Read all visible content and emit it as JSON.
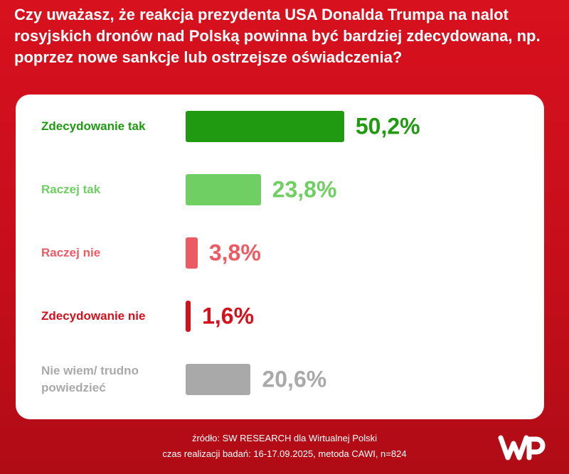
{
  "chart_data": {
    "type": "bar",
    "title": "Czy uważasz, że reakcja prezydenta USA Donalda Trumpa na nalot rosyjskich dronów nad Polską powinna być bardziej zdecydowana, np. poprzez nowe sankcje lub ostrzejsze oświadczenia?",
    "categories": [
      "Zdecydowanie tak",
      "Raczej tak",
      "Raczej nie",
      "Zdecydowanie nie",
      "Nie wiem/ trudno powiedzieć"
    ],
    "values": [
      50.2,
      23.8,
      3.8,
      1.6,
      20.6
    ],
    "value_labels": [
      "50,2%",
      "23,8%",
      "3,8%",
      "1,6%",
      "20,6%"
    ],
    "colors": [
      "#1f9a11",
      "#6fcf63",
      "#ec5b63",
      "#d4101b",
      "#a9a9a9"
    ],
    "source": "źródło: SW RESEARCH dla Wirtualnej Polski",
    "footnote": "czas realizacji badań: 16-17.09.2025, metoda CAWI, n=824"
  }
}
